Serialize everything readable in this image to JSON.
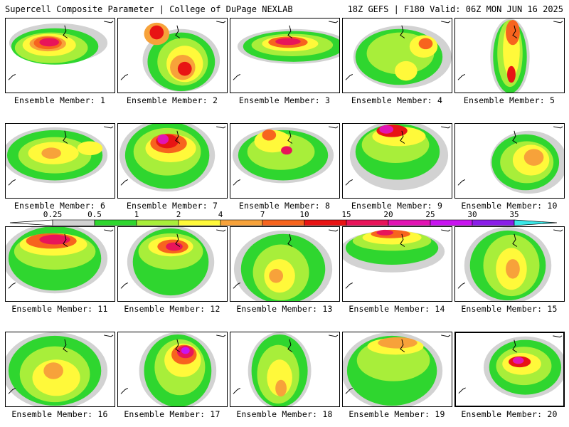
{
  "header": {
    "title_left": "Supercell Composite Parameter | College of DuPage NEXLAB",
    "title_right": "18Z GEFS | F180 Valid: 06Z MON JUN 16 2025"
  },
  "colorbar": {
    "ticks": [
      "0.25",
      "0.5",
      "1",
      "2",
      "4",
      "7",
      "10",
      "15",
      "20",
      "25",
      "30",
      "35"
    ],
    "colors": [
      "#d2d2d2",
      "#2fd62f",
      "#a8ee3a",
      "#fff93a",
      "#f7a23a",
      "#f7641e",
      "#e81414",
      "#e8145a",
      "#e214b4",
      "#c814f0",
      "#8a1ee8",
      "#a46ee0",
      "#3ae8e8"
    ]
  },
  "panels": [
    {
      "label": "Ensemble Member: 1"
    },
    {
      "label": "Ensemble Member: 2"
    },
    {
      "label": "Ensemble Member: 3"
    },
    {
      "label": "Ensemble Member: 4"
    },
    {
      "label": "Ensemble Member: 5"
    },
    {
      "label": "Ensemble Member: 6"
    },
    {
      "label": "Ensemble Member: 7"
    },
    {
      "label": "Ensemble Member: 8"
    },
    {
      "label": "Ensemble Member: 9"
    },
    {
      "label": "Ensemble Member: 10"
    },
    {
      "label": "Ensemble Member: 11"
    },
    {
      "label": "Ensemble Member: 12"
    },
    {
      "label": "Ensemble Member: 13"
    },
    {
      "label": "Ensemble Member: 14"
    },
    {
      "label": "Ensemble Member: 15"
    },
    {
      "label": "Ensemble Member: 16"
    },
    {
      "label": "Ensemble Member: 17"
    },
    {
      "label": "Ensemble Member: 18"
    },
    {
      "label": "Ensemble Member: 19"
    },
    {
      "label": "Ensemble Member: 20"
    }
  ]
}
